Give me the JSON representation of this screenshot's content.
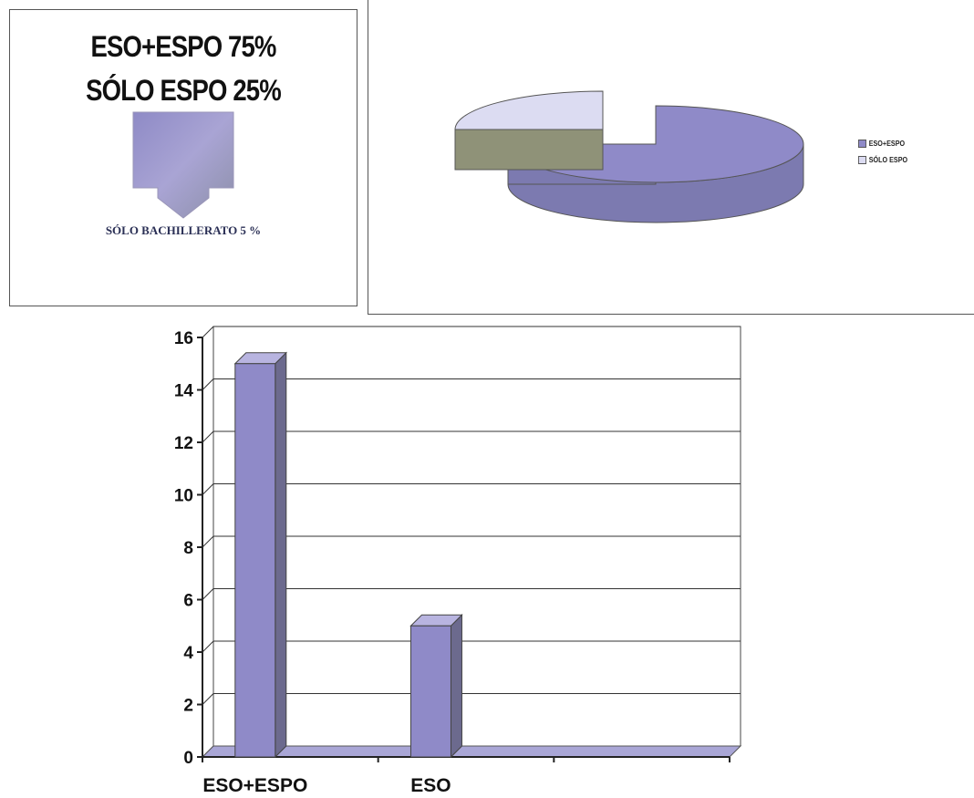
{
  "summary": {
    "line1": "ESO+ESPO  75%",
    "line2": "SÓLO ESPO 25%",
    "arrow_icon": "down-arrow-icon",
    "note": "SÓLO BACHILLERATO 5 %"
  },
  "chart_data": [
    {
      "type": "pie",
      "style": "3d-exploded",
      "slices": [
        {
          "label": "ESO+ESPO",
          "value": 75,
          "color": "#8f8ac8"
        },
        {
          "label": "SÓLO ESPO",
          "value": 25,
          "color": "#dcdcf2"
        }
      ],
      "legend_position": "right"
    },
    {
      "type": "bar",
      "style": "3d",
      "categories": [
        "ESO+ESPO",
        "ESO",
        ""
      ],
      "values": [
        15,
        5,
        0
      ],
      "ylim": [
        0,
        16
      ],
      "yticks": [
        "0",
        "2",
        "4",
        "6",
        "8",
        "10",
        "12",
        "14",
        "16"
      ],
      "grid": true,
      "bar_color": "#8f8ac8"
    }
  ]
}
